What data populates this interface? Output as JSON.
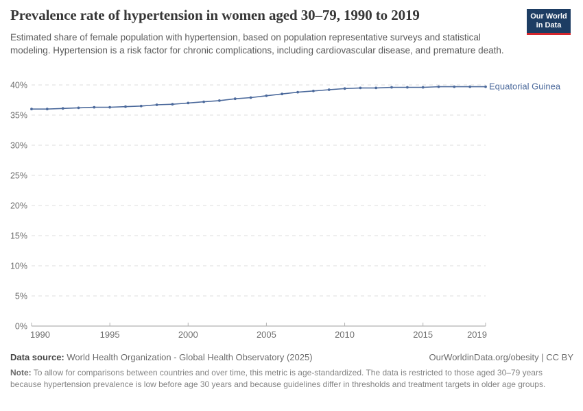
{
  "header": {
    "title": "Prevalence rate of hypertension in women aged 30–79, 1990 to 2019",
    "subtitle": "Estimated share of female population with hypertension, based on population representative surveys and statistical modeling. Hypertension is a risk factor for chronic complications, including cardiovascular disease, and premature death.",
    "logo": {
      "line1": "Our World",
      "line2": "in Data",
      "bg_color": "#1d3d63",
      "accent_color": "#d4262c"
    }
  },
  "chart_data": {
    "type": "line",
    "title": "Prevalence rate of hypertension in women aged 30–79, 1990 to 2019",
    "xlabel": "",
    "ylabel": "",
    "x": [
      1990,
      1991,
      1992,
      1993,
      1994,
      1995,
      1996,
      1997,
      1998,
      1999,
      2000,
      2001,
      2002,
      2003,
      2004,
      2005,
      2006,
      2007,
      2008,
      2009,
      2010,
      2011,
      2012,
      2013,
      2014,
      2015,
      2016,
      2017,
      2018,
      2019
    ],
    "series": [
      {
        "name": "Equatorial Guinea",
        "color": "#4C6A9C",
        "values": [
          36.0,
          36.0,
          36.1,
          36.2,
          36.3,
          36.3,
          36.4,
          36.5,
          36.7,
          36.8,
          37.0,
          37.2,
          37.4,
          37.7,
          37.9,
          38.2,
          38.5,
          38.8,
          39.0,
          39.2,
          39.4,
          39.5,
          39.5,
          39.6,
          39.6,
          39.6,
          39.7,
          39.7,
          39.7,
          39.7
        ]
      }
    ],
    "ylim": [
      0,
      40
    ],
    "yticks": [
      0,
      5,
      10,
      15,
      20,
      25,
      30,
      35,
      40
    ],
    "ytick_suffix": "%",
    "xticks": [
      1990,
      1995,
      2000,
      2005,
      2010,
      2015,
      2019
    ],
    "grid": "horizontal-dashed",
    "legend": "inline-label-right",
    "colors": {
      "gridline": "#dcdcdc",
      "zero_line": "#9c9c9c",
      "tick": "#b3b3b3",
      "axis_text": "#6e6e6e"
    }
  },
  "footer": {
    "data_source_label": "Data source:",
    "data_source": "World Health Organization - Global Health Observatory (2025)",
    "attribution": "OurWorldinData.org/obesity | CC BY",
    "note_label": "Note:",
    "note": "To allow for comparisons between countries and over time, this metric is age-standardized. The data is restricted to those aged 30–79 years because hypertension prevalence is low before age 30 years and because guidelines differ in thresholds and treatment targets in older age groups."
  }
}
